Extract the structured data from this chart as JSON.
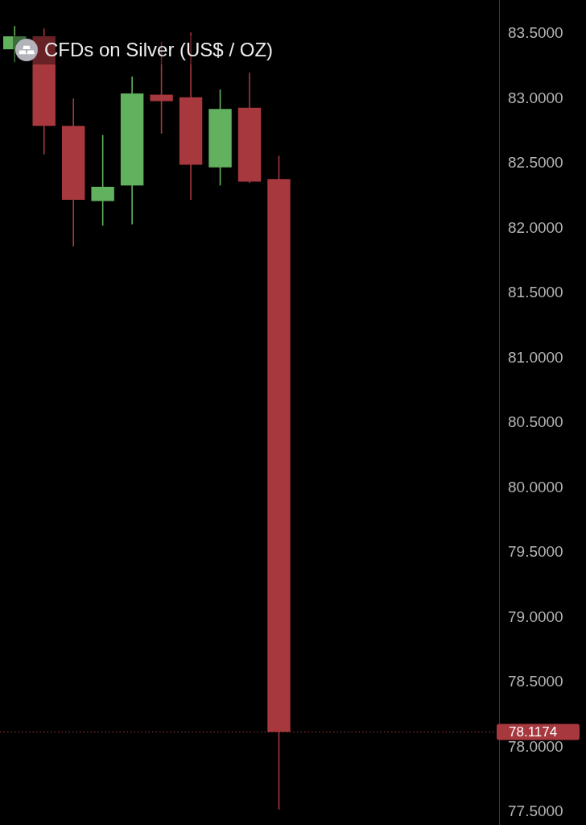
{
  "chart_data": {
    "type": "candlestick",
    "title": "CFDs on Silver (US$ / OZ)",
    "categories": [
      null,
      null,
      null,
      null,
      null,
      null,
      null,
      null,
      null,
      null,
      null,
      null,
      null,
      null,
      null,
      null,
      null
    ],
    "ohlc": [
      [
        83.38,
        83.56,
        83.28,
        83.48
      ],
      [
        83.48,
        83.54,
        82.57,
        82.79
      ],
      [
        82.79,
        83.0,
        81.86,
        82.22
      ],
      [
        82.21,
        82.72,
        82.02,
        82.32
      ],
      [
        82.33,
        83.17,
        82.03,
        83.04
      ],
      [
        83.03,
        83.44,
        82.73,
        82.98
      ],
      [
        83.01,
        83.51,
        82.22,
        82.49
      ],
      [
        82.47,
        83.07,
        82.33,
        82.92
      ],
      [
        82.93,
        83.2,
        82.35,
        82.36
      ],
      [
        82.38,
        82.56,
        77.52,
        78.1174
      ],
      null,
      null,
      null,
      null,
      null,
      null,
      null
    ],
    "colors": [
      "#62b15f",
      "#a6383e",
      "#a6383e",
      "#62b15f",
      "#62b15f",
      "#a6383e",
      "#a6383e",
      "#62b15f",
      "#a6383e",
      "#a6383e",
      null,
      null,
      null,
      null,
      null,
      null,
      null
    ],
    "ylim": [
      77.4,
      83.76
    ],
    "yticks": [
      {
        "value": 77.5,
        "label": "77.5000"
      },
      {
        "value": 78.0,
        "label": "78.0000"
      },
      {
        "value": 78.5,
        "label": "78.5000"
      },
      {
        "value": 79.0,
        "label": "79.0000"
      },
      {
        "value": 79.5,
        "label": "79.5000"
      },
      {
        "value": 80.0,
        "label": "80.0000"
      },
      {
        "value": 80.5,
        "label": "80.5000"
      },
      {
        "value": 81.0,
        "label": "81.0000"
      },
      {
        "value": 81.5,
        "label": "81.5000"
      },
      {
        "value": 82.0,
        "label": "82.0000"
      },
      {
        "value": 82.5,
        "label": "82.5000"
      },
      {
        "value": 83.0,
        "label": "83.0000"
      },
      {
        "value": 83.5,
        "label": "83.5000"
      }
    ],
    "tick_labels": "y",
    "ref_lines": [
      {
        "axis": "y",
        "value": 78.1174,
        "label": "78.1174",
        "color": "#a6383e",
        "line_style": "dotted"
      }
    ]
  }
}
